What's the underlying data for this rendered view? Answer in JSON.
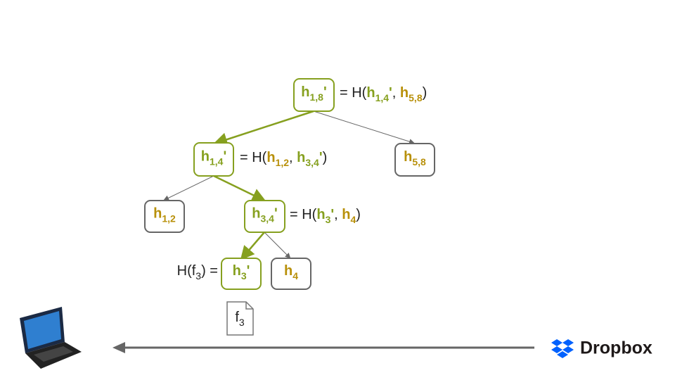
{
  "nodes": [
    {
      "label": {
        "text": "h",
        "sub": "1,8",
        "prime": "'",
        "bold": true,
        "color": "#86a01f"
      },
      "border": "#86a01f"
    },
    {
      "label": {
        "text": "h",
        "sub": "1,4",
        "prime": "'",
        "bold": true,
        "color": "#86a01f"
      },
      "border": "#86a01f"
    },
    {
      "label": {
        "text": "h",
        "sub": "5,8",
        "bold": true,
        "color": "#b8900a"
      },
      "border": "#666666"
    },
    {
      "label": {
        "text": "h",
        "sub": "1,2",
        "bold": true,
        "color": "#b8900a"
      },
      "border": "#666666"
    },
    {
      "label": {
        "text": "h",
        "sub": "3,4",
        "prime": "'",
        "bold": true,
        "color": "#86a01f"
      },
      "border": "#86a01f"
    },
    {
      "label": {
        "text": "h",
        "sub": "3",
        "prime": "'",
        "bold": true,
        "color": "#86a01f"
      },
      "border": "#86a01f"
    },
    {
      "label": {
        "text": "h",
        "sub": "4",
        "bold": true,
        "color": "#b8900a"
      },
      "border": "#666666"
    }
  ],
  "equations": [
    {
      "runs": [
        {
          "text": "= H("
        },
        {
          "text": "h",
          "sub": "1,4",
          "prime": "'",
          "bold": true,
          "color": "#86a01f"
        },
        {
          "text": ", "
        },
        {
          "text": "h",
          "sub": "5,8",
          "bold": true,
          "color": "#b8900a"
        },
        {
          "text": ")"
        }
      ]
    },
    {
      "runs": [
        {
          "text": "= H("
        },
        {
          "text": "h",
          "sub": "1,2",
          "bold": true,
          "color": "#b8900a"
        },
        {
          "text": ", "
        },
        {
          "text": "h",
          "sub": "3,4",
          "prime": "'",
          "bold": true,
          "color": "#86a01f"
        },
        {
          "text": ")"
        }
      ]
    },
    {
      "runs": [
        {
          "text": "= H("
        },
        {
          "text": "h",
          "sub": "3",
          "prime": "'",
          "bold": true,
          "color": "#86a01f"
        },
        {
          "text": ", "
        },
        {
          "text": "h",
          "sub": "4",
          "bold": true,
          "color": "#b8900a"
        },
        {
          "text": ")"
        }
      ]
    },
    {
      "runs": [
        {
          "text": "H(f",
          "sub": "3"
        },
        {
          "text": ") ="
        }
      ]
    }
  ],
  "file": {
    "text": "f",
    "sub": "3"
  },
  "brand": "Dropbox"
}
